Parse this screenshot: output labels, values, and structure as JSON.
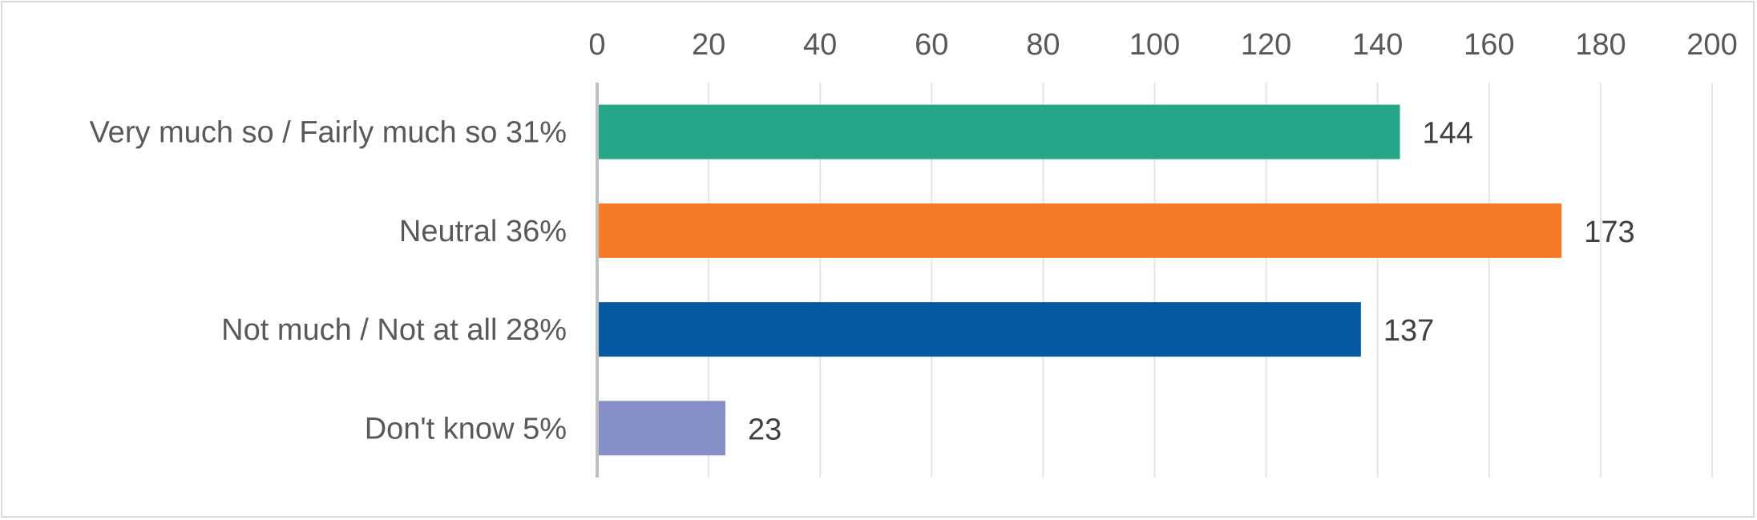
{
  "chart_data": {
    "type": "bar",
    "orientation": "horizontal",
    "categories": [
      "Very much so / Fairly much so 31%",
      "Neutral 36%",
      "Not much / Not at all 28%",
      "Don't know 5%"
    ],
    "values": [
      144,
      173,
      137,
      23
    ],
    "colors": [
      "#26a589",
      "#f47a28",
      "#0459a1",
      "#858ec6"
    ],
    "data_labels": [
      "144",
      "173",
      "137",
      "23"
    ],
    "xlim": [
      0,
      200
    ],
    "x_ticks": [
      "0",
      "20",
      "40",
      "60",
      "80",
      "100",
      "120",
      "140",
      "160",
      "180",
      "200"
    ],
    "x_axis_position": "top",
    "grid": true,
    "legend": "none",
    "title": "",
    "xlabel": "",
    "ylabel": ""
  }
}
